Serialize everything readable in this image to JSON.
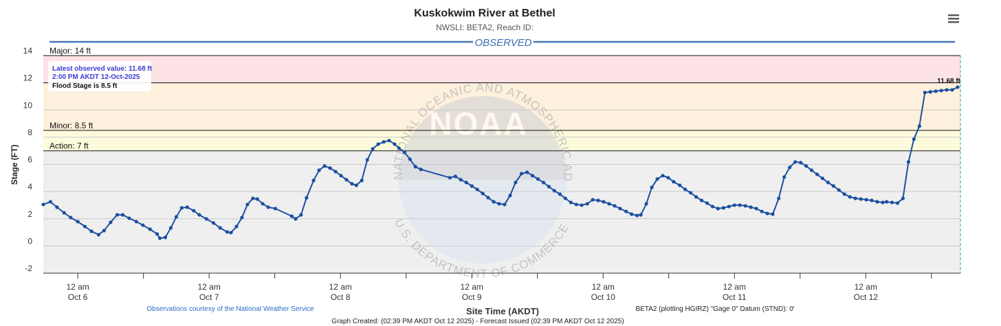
{
  "chart_data": {
    "type": "line",
    "title": "Kuskokwim River at Bethel",
    "subtitle": "NWSLI: BETA2, Reach ID:",
    "section_label": "OBSERVED",
    "ylabel": "Stage (FT)",
    "xlabel": "Site Time (AKDT)",
    "color": "#1b4fa0",
    "ylim": [
      -2,
      14
    ],
    "yticks": [
      -2,
      0,
      2,
      4,
      6,
      8,
      10,
      12,
      14
    ],
    "grid": true,
    "xlim": [
      -6.3,
      161.3
    ],
    "xticks": [
      {
        "value": 0,
        "label": [
          "12 am",
          "Oct 6"
        ]
      },
      {
        "value": 24,
        "label": [
          "12 am",
          "Oct 7"
        ]
      },
      {
        "value": 48,
        "label": [
          "12 am",
          "Oct 8"
        ]
      },
      {
        "value": 72,
        "label": [
          "12 am",
          "Oct 9"
        ]
      },
      {
        "value": 96,
        "label": [
          "12 am",
          "Oct 10"
        ]
      },
      {
        "value": 120,
        "label": [
          "12 am",
          "Oct 11"
        ]
      },
      {
        "value": 144,
        "label": [
          "12 am",
          "Oct 12"
        ]
      }
    ],
    "xminorticks": [
      12,
      36,
      60,
      84,
      108,
      132,
      156
    ],
    "flood_levels": [
      {
        "value": 14,
        "label": "Major: 14 ft",
        "color": "#fde3e6"
      },
      {
        "value": 12,
        "color": "#fdf0dc"
      },
      {
        "value": 8.5,
        "label": "Minor: 8.5 ft",
        "color": "#fdfbdc"
      },
      {
        "value": 7,
        "label": "Action: 7 ft",
        "color": "#efefef"
      }
    ],
    "x": [
      -6.3,
      -5.0,
      -3.8,
      -2.5,
      -1.3,
      0,
      1.3,
      2.5,
      3.8,
      4.8,
      6.0,
      7.2,
      8.2,
      9.4,
      10.7,
      11.9,
      13.2,
      14.5,
      15.0,
      16.0,
      17.0,
      18.0,
      19.0,
      20.0,
      21.2,
      22.2,
      23.5,
      24.8,
      26.0,
      27.3,
      28.0,
      29.0,
      30.0,
      31.0,
      32.0,
      32.8,
      33.8,
      34.8,
      36.1,
      39.1,
      39.8,
      40.8,
      41.8,
      43.1,
      44.1,
      45.1,
      46.1,
      47.1,
      48.1,
      49.1,
      50.1,
      50.9,
      51.9,
      52.9,
      53.9,
      54.9,
      55.9,
      56.9,
      57.9,
      58.7,
      59.7,
      60.7,
      61.7,
      62.7,
      68.0,
      69.0,
      70.0,
      71.0,
      72.0,
      73.0,
      74.0,
      75.0,
      76.0,
      77.0,
      78.0,
      79.0,
      80.0,
      81.1,
      82.1,
      83.1,
      84.1,
      85.1,
      86.1,
      87.1,
      88.1,
      89.1,
      90.1,
      91.1,
      92.1,
      93.1,
      94.1,
      95.1,
      96.1,
      97.1,
      98.1,
      99.1,
      100.2,
      101.2,
      102.2,
      102.9,
      103.9,
      104.9,
      105.9,
      106.9,
      107.9,
      108.9,
      110.0,
      111.0,
      112.0,
      113.0,
      114.0,
      115.0,
      116.0,
      117.0,
      118.0,
      119.0,
      120.0,
      121.0,
      122.0,
      123.0,
      124.0,
      125.0,
      126.0,
      127.0,
      128.1,
      129.1,
      130.1,
      131.1,
      132.1,
      133.1,
      134.1,
      135.1,
      136.1,
      137.1,
      138.1,
      139.1,
      140.1,
      141.1,
      142.1,
      143.1,
      144.1,
      145.1,
      146.1,
      147.1,
      147.8,
      148.8,
      149.8,
      150.8,
      151.8,
      152.8,
      153.8,
      154.8,
      155.8,
      156.8,
      157.8,
      158.8,
      159.8,
      160.8
    ],
    "values": [
      3.05,
      3.25,
      2.85,
      2.44,
      2.09,
      1.79,
      1.43,
      1.08,
      0.83,
      1.13,
      1.74,
      2.29,
      2.29,
      2.04,
      1.79,
      1.53,
      1.23,
      0.88,
      0.57,
      0.63,
      1.33,
      2.14,
      2.8,
      2.85,
      2.59,
      2.29,
      1.99,
      1.69,
      1.33,
      1.03,
      0.98,
      1.43,
      2.09,
      3.05,
      3.5,
      3.45,
      3.1,
      2.85,
      2.75,
      2.19,
      1.99,
      2.29,
      3.54,
      4.82,
      5.57,
      5.88,
      5.73,
      5.47,
      5.17,
      4.87,
      4.57,
      4.46,
      4.82,
      6.33,
      7.14,
      7.49,
      7.65,
      7.75,
      7.49,
      7.19,
      6.89,
      6.38,
      5.83,
      5.63,
      5.02,
      5.12,
      4.87,
      4.67,
      4.41,
      4.16,
      3.86,
      3.55,
      3.25,
      3.1,
      3.05,
      3.71,
      4.67,
      5.32,
      5.42,
      5.17,
      4.92,
      4.67,
      4.36,
      4.06,
      3.81,
      3.5,
      3.2,
      3.05,
      3.0,
      3.1,
      3.4,
      3.35,
      3.25,
      3.1,
      2.95,
      2.75,
      2.54,
      2.34,
      2.24,
      2.29,
      3.1,
      4.31,
      4.92,
      5.17,
      5.02,
      4.72,
      4.46,
      4.16,
      3.91,
      3.61,
      3.35,
      3.15,
      2.9,
      2.75,
      2.8,
      2.9,
      3.0,
      3.0,
      2.95,
      2.85,
      2.75,
      2.54,
      2.39,
      2.34,
      3.5,
      5.07,
      5.78,
      6.18,
      6.13,
      5.88,
      5.57,
      5.27,
      4.97,
      4.67,
      4.41,
      4.11,
      3.81,
      3.61,
      3.5,
      3.45,
      3.4,
      3.35,
      3.25,
      3.2,
      3.25,
      3.2,
      3.15,
      3.5,
      6.18,
      7.85,
      8.81,
      11.28,
      11.33,
      11.38,
      11.43,
      11.48,
      11.48,
      11.68
    ],
    "value_labels": [
      null,
      null,
      null,
      null,
      null,
      null,
      null,
      null,
      null,
      null,
      null,
      null,
      null,
      null,
      null,
      null,
      null,
      null,
      null,
      null,
      null,
      null,
      null,
      null,
      null,
      null,
      null,
      null,
      null,
      null,
      null,
      null,
      null,
      null,
      null,
      null,
      null,
      null,
      null,
      null,
      null,
      null,
      null,
      null,
      null,
      null,
      null,
      null,
      null,
      null,
      null,
      null,
      null,
      null,
      null,
      null,
      null,
      null,
      null,
      null,
      null,
      null,
      null,
      null,
      null,
      null,
      null,
      null,
      null,
      null,
      null,
      null,
      null,
      null,
      null,
      null,
      null,
      null,
      null,
      null,
      null,
      null,
      null,
      null,
      null,
      null,
      null,
      null,
      null,
      null,
      null,
      null,
      null,
      null,
      null,
      null,
      null,
      null,
      null,
      null,
      null,
      null,
      null,
      null,
      null,
      null,
      null,
      null,
      null,
      null,
      null,
      null,
      null,
      null,
      null,
      null,
      null,
      null,
      null,
      null,
      null,
      null,
      null,
      null,
      null,
      null,
      null,
      null,
      null,
      null,
      null,
      null,
      null,
      null,
      null,
      null,
      null,
      null,
      null,
      null,
      null,
      null,
      null,
      null,
      null,
      null,
      null,
      null,
      null,
      null,
      null,
      null,
      null,
      null,
      null,
      null,
      null,
      "11.68 ft"
    ],
    "tooltip": [
      "Latest observed value: 11.68 ft",
      "2:00 PM AKDT 12-Oct-2025",
      "Flood Stage is 8.5 ft"
    ],
    "watermark": {
      "top": "NATIONAL OCEANIC AND ATMOSPHERIC ADMINISTRATION",
      "center": "NOAA",
      "bottom": "U.S. DEPARTMENT OF COMMERCE"
    },
    "credit": "Observations courtesy of the National Weather Service",
    "datum_note": "BETA2 (plotting HGIRZ) \"Gage 0\" Datum (STND): 0'",
    "footer": "Graph Created: (02:39 PM AKDT Oct 12 2025) - Forecast Issued (02:39 PM AKDT Oct 12 2025)"
  }
}
